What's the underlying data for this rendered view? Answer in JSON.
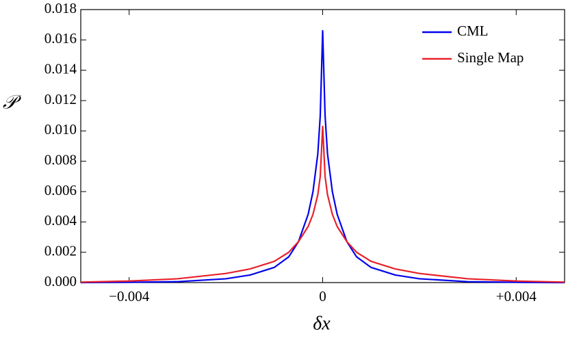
{
  "chart_data": {
    "type": "line",
    "x_label": "δx",
    "y_label": "𝒫",
    "x": [
      -0.005,
      -0.004,
      -0.003,
      -0.002,
      -0.0015,
      -0.001,
      -0.0007,
      -0.0005,
      -0.0003,
      -0.0002,
      -0.0001,
      -5e-05,
      0,
      5e-05,
      0.0001,
      0.0002,
      0.0003,
      0.0005,
      0.0007,
      0.001,
      0.0015,
      0.002,
      0.003,
      0.004,
      0.005
    ],
    "series": [
      {
        "name": "CML",
        "color": "#0000ee",
        "values": [
          0,
          2e-05,
          6e-05,
          0.00025,
          0.0005,
          0.001,
          0.0017,
          0.0027,
          0.0045,
          0.006,
          0.0085,
          0.011,
          0.0166,
          0.011,
          0.0085,
          0.006,
          0.0045,
          0.0027,
          0.0017,
          0.001,
          0.0005,
          0.00025,
          6e-05,
          2e-05,
          0
        ]
      },
      {
        "name": "Single Map",
        "color": "#e8202a",
        "values": [
          3e-05,
          0.0001,
          0.00025,
          0.0006,
          0.0009,
          0.0014,
          0.002,
          0.0027,
          0.0037,
          0.0045,
          0.0058,
          0.007,
          0.0103,
          0.007,
          0.0058,
          0.0045,
          0.0037,
          0.0027,
          0.002,
          0.0014,
          0.0009,
          0.0006,
          0.00025,
          0.0001,
          3e-05
        ]
      }
    ],
    "xlim": [
      -0.005,
      0.005
    ],
    "xticks": [
      {
        "value": -0.004,
        "label": "−0.004"
      },
      0,
      {
        "value": 0.004,
        "label": "+0.004"
      }
    ],
    "ylim": [
      0,
      0.018
    ],
    "yticks": [
      {
        "value": 0,
        "label": "0.000"
      },
      0.002,
      0.004,
      0.006,
      0.008,
      {
        "value": 0.01,
        "label": "0.010"
      },
      0.012,
      0.014,
      0.016,
      0.018
    ],
    "legend": "upper right"
  }
}
